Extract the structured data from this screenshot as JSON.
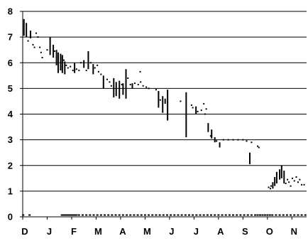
{
  "chart_data": {
    "type": "line",
    "title": "",
    "xlabel": "",
    "ylabel": "",
    "ylim": [
      0,
      8
    ],
    "y_ticks": [
      "0",
      "1",
      "2",
      "3",
      "4",
      "5",
      "6",
      "7",
      "8"
    ],
    "x_ticks": [
      "D",
      "J",
      "F",
      "M",
      "A",
      "M",
      "J",
      "J",
      "A",
      "S",
      "O",
      "N"
    ],
    "grid": "horizontal",
    "legend": "none",
    "series": [
      {
        "color": "#000000",
        "style": "range-bars",
        "ranges": [
          [
            0.05,
            7.05,
            7.7
          ],
          [
            0.15,
            7.0,
            7.55
          ],
          [
            0.32,
            6.95,
            7.25
          ],
          [
            1.12,
            6.3,
            7.0
          ],
          [
            1.25,
            6.2,
            6.7
          ],
          [
            1.38,
            5.9,
            6.5
          ],
          [
            1.45,
            5.6,
            6.4
          ],
          [
            1.55,
            5.7,
            6.35
          ],
          [
            1.62,
            5.6,
            6.3
          ],
          [
            1.72,
            5.55,
            6.05
          ],
          [
            2.12,
            5.6,
            6.0
          ],
          [
            2.5,
            5.8,
            6.1
          ],
          [
            2.68,
            5.75,
            6.45
          ],
          [
            2.88,
            5.55,
            5.95
          ],
          [
            3.3,
            5.0,
            5.5
          ],
          [
            3.72,
            4.65,
            5.4
          ],
          [
            3.82,
            4.7,
            5.25
          ],
          [
            3.95,
            4.6,
            5.3
          ],
          [
            4.1,
            4.75,
            5.2
          ],
          [
            4.22,
            4.6,
            5.75
          ],
          [
            4.48,
            5.0,
            5.2
          ],
          [
            5.55,
            4.25,
            4.9
          ],
          [
            5.72,
            4.05,
            4.7
          ],
          [
            5.82,
            4.4,
            4.6
          ],
          [
            5.92,
            3.75,
            4.95
          ],
          [
            6.68,
            3.1,
            4.85
          ],
          [
            7.08,
            4.0,
            4.3
          ],
          [
            7.58,
            3.3,
            3.65
          ],
          [
            7.72,
            3.05,
            3.4
          ],
          [
            7.85,
            2.9,
            3.1
          ],
          [
            8.05,
            2.7,
            2.9
          ],
          [
            9.28,
            2.05,
            2.5
          ],
          [
            10.22,
            1.1,
            1.35
          ],
          [
            10.3,
            1.2,
            1.55
          ],
          [
            10.38,
            1.3,
            1.75
          ],
          [
            10.5,
            1.45,
            1.85
          ],
          [
            10.58,
            1.5,
            2.0
          ],
          [
            10.68,
            1.3,
            1.8
          ]
        ],
        "points": [
          [
            0.55,
            7.15
          ],
          [
            0.62,
            7.0
          ],
          [
            0.7,
            6.6
          ],
          [
            0.75,
            6.4
          ],
          [
            0.8,
            6.2
          ],
          [
            0.42,
            6.7
          ],
          [
            0.48,
            6.6
          ],
          [
            0.22,
            6.85
          ],
          [
            1.0,
            6.5
          ],
          [
            1.3,
            6.45
          ],
          [
            1.68,
            6.1
          ],
          [
            1.78,
            5.9
          ],
          [
            1.85,
            5.8
          ],
          [
            1.95,
            5.85
          ],
          [
            2.05,
            5.7
          ],
          [
            2.2,
            5.75
          ],
          [
            2.3,
            5.7
          ],
          [
            2.38,
            6.0
          ],
          [
            2.6,
            5.7
          ],
          [
            2.78,
            6.0
          ],
          [
            2.95,
            5.8
          ],
          [
            3.05,
            5.9
          ],
          [
            3.1,
            5.65
          ],
          [
            3.2,
            5.55
          ],
          [
            3.45,
            5.35
          ],
          [
            3.55,
            5.25
          ],
          [
            3.62,
            5.1
          ],
          [
            4.05,
            5.15
          ],
          [
            4.3,
            5.4
          ],
          [
            4.4,
            5.15
          ],
          [
            4.58,
            5.2
          ],
          [
            4.72,
            5.15
          ],
          [
            4.82,
            5.25
          ],
          [
            4.92,
            5.1
          ],
          [
            5.05,
            5.05
          ],
          [
            5.15,
            5.0
          ],
          [
            4.8,
            5.65
          ],
          [
            5.45,
            4.95
          ],
          [
            5.62,
            4.55
          ],
          [
            6.45,
            4.5
          ],
          [
            6.9,
            4.35
          ],
          [
            6.95,
            4.25
          ],
          [
            7.15,
            4.1
          ],
          [
            7.3,
            4.15
          ],
          [
            7.4,
            4.4
          ],
          [
            7.45,
            4.0
          ],
          [
            7.5,
            4.2
          ],
          [
            7.68,
            3.15
          ],
          [
            7.92,
            2.95
          ],
          [
            8.2,
            3.0
          ],
          [
            8.4,
            3.0
          ],
          [
            8.6,
            3.0
          ],
          [
            8.8,
            3.0
          ],
          [
            9.0,
            3.0
          ],
          [
            9.15,
            2.95
          ],
          [
            9.35,
            2.9
          ],
          [
            9.6,
            2.75
          ],
          [
            9.65,
            2.7
          ],
          [
            10.05,
            1.15
          ],
          [
            10.12,
            1.1
          ],
          [
            10.15,
            1.2
          ],
          [
            10.75,
            1.3
          ],
          [
            10.82,
            1.45
          ],
          [
            10.88,
            1.35
          ],
          [
            10.95,
            1.2
          ],
          [
            11.02,
            1.5
          ],
          [
            11.1,
            1.4
          ],
          [
            11.18,
            1.55
          ],
          [
            11.25,
            1.35
          ],
          [
            11.32,
            1.45
          ],
          [
            11.4,
            1.25
          ],
          [
            11.5,
            1.25
          ]
        ],
        "zero_points": [
          0.02,
          0.28,
          1.6,
          1.65,
          1.7,
          1.75,
          1.8,
          1.85,
          1.9,
          1.95,
          2.0,
          2.05,
          2.1,
          2.15,
          2.2,
          2.3,
          2.45,
          2.6,
          2.75,
          2.9,
          3.05,
          3.2,
          3.35,
          3.5,
          3.65,
          3.8,
          3.95,
          4.1,
          4.25,
          4.4,
          4.55,
          4.7,
          4.85,
          5.0,
          5.15,
          5.3,
          5.45,
          5.6,
          5.75,
          5.9,
          6.05,
          6.2,
          6.35,
          6.5,
          6.65,
          6.8,
          6.95,
          7.1,
          7.25,
          7.4,
          7.55,
          7.7,
          7.85,
          8.0,
          8.15,
          8.3,
          8.45,
          8.6,
          8.75,
          8.9,
          9.05,
          9.2,
          9.35,
          9.5,
          9.6,
          9.7,
          9.8,
          9.9,
          10.0,
          10.1,
          10.2,
          10.35,
          10.5,
          10.65,
          10.8,
          10.95,
          11.1,
          11.25,
          11.4,
          11.55
        ]
      }
    ]
  }
}
